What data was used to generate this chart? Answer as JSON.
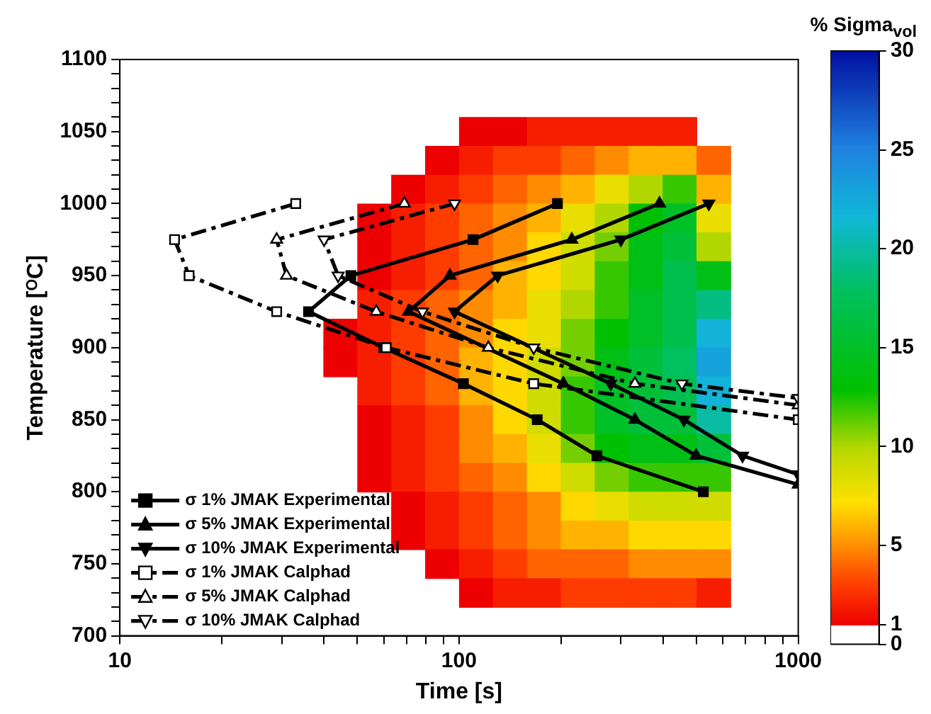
{
  "chart_data": [
    {
      "type": "heatmap",
      "categories": [
        null,
        null,
        null,
        null,
        null,
        null,
        null,
        null,
        null,
        null,
        null,
        null
      ],
      "y_categories": [
        null,
        null,
        null,
        null,
        null,
        null,
        null,
        null,
        null,
        null,
        null,
        null,
        null,
        null,
        null,
        null,
        null
      ],
      "cells": [
        [
          null,
          null,
          null,
          null,
          1,
          1,
          2,
          2,
          2,
          2,
          2,
          null
        ],
        [
          null,
          null,
          null,
          1,
          2,
          3,
          3,
          4,
          5,
          6,
          6,
          4
        ],
        [
          null,
          null,
          1,
          2,
          3,
          4,
          5,
          6,
          8,
          10,
          12,
          6
        ],
        [
          null,
          1,
          2,
          3,
          4,
          5,
          6,
          8,
          10,
          13,
          15,
          8
        ],
        [
          null,
          1,
          2,
          3,
          4,
          5,
          7,
          9,
          11,
          14,
          16,
          10
        ],
        [
          null,
          1,
          2,
          3,
          4,
          6,
          7,
          9,
          12,
          14,
          17,
          14
        ],
        [
          null,
          2,
          3,
          4,
          5,
          6,
          8,
          10,
          12,
          15,
          17,
          19
        ],
        [
          1,
          2,
          3,
          4,
          5,
          7,
          8,
          11,
          13,
          15,
          17,
          22
        ],
        [
          1,
          2,
          3,
          4,
          6,
          7,
          9,
          11,
          14,
          16,
          18,
          23
        ],
        [
          null,
          2,
          3,
          4,
          6,
          7,
          9,
          12,
          15,
          16,
          17,
          22
        ],
        [
          null,
          1,
          2,
          3,
          5,
          7,
          9,
          12,
          15,
          16,
          16,
          20
        ],
        [
          null,
          1,
          2,
          3,
          5,
          6,
          8,
          11,
          13,
          14,
          14,
          16
        ],
        [
          null,
          1,
          2,
          3,
          4,
          5,
          7,
          9,
          11,
          12,
          12,
          12
        ],
        [
          null,
          null,
          1,
          2,
          3,
          4,
          5,
          7,
          8,
          9,
          9,
          9
        ],
        [
          null,
          null,
          1,
          2,
          3,
          4,
          5,
          6,
          6,
          7,
          7,
          7
        ],
        [
          null,
          null,
          null,
          1,
          2,
          3,
          4,
          4,
          4,
          5,
          5,
          5
        ],
        [
          null,
          null,
          null,
          null,
          1,
          2,
          2,
          3,
          3,
          3,
          3,
          2
        ]
      ],
      "clim": [
        0,
        30
      ],
      "cticks": [
        0,
        1,
        5,
        10,
        15,
        20,
        25,
        30
      ],
      "clabel": "% Sigma$_{vol}$"
    },
    {
      "type": "line",
      "xlabel": "Time [s]",
      "ylabel": "Temperature [ᴼC]",
      "log": "x",
      "xlim": [
        10,
        1000
      ],
      "xticks": [
        10,
        {
          "value": 20,
          "label": null
        },
        {
          "value": 30,
          "label": null
        },
        {
          "value": 40,
          "label": null
        },
        {
          "value": 50,
          "label": null
        },
        {
          "value": 60,
          "label": null
        },
        {
          "value": 70,
          "label": null
        },
        {
          "value": 80,
          "label": null
        },
        {
          "value": 90,
          "label": null
        },
        100,
        {
          "value": 200,
          "label": null
        },
        {
          "value": 300,
          "label": null
        },
        {
          "value": 400,
          "label": null
        },
        {
          "value": 500,
          "label": null
        },
        {
          "value": 600,
          "label": null
        },
        {
          "value": 700,
          "label": null
        },
        {
          "value": 800,
          "label": null
        },
        {
          "value": 900,
          "label": null
        },
        1000
      ],
      "ylim": [
        700,
        1100
      ],
      "yticks": [
        700,
        {
          "value": 710,
          "label": null
        },
        {
          "value": 720,
          "label": null
        },
        {
          "value": 730,
          "label": null
        },
        {
          "value": 740,
          "label": null
        },
        750,
        {
          "value": 760,
          "label": null
        },
        {
          "value": 770,
          "label": null
        },
        {
          "value": 780,
          "label": null
        },
        {
          "value": 790,
          "label": null
        },
        800,
        {
          "value": 810,
          "label": null
        },
        {
          "value": 820,
          "label": null
        },
        {
          "value": 830,
          "label": null
        },
        {
          "value": 840,
          "label": null
        },
        850,
        {
          "value": 860,
          "label": null
        },
        {
          "value": 870,
          "label": null
        },
        {
          "value": 880,
          "label": null
        },
        {
          "value": 890,
          "label": null
        },
        900,
        {
          "value": 910,
          "label": null
        },
        {
          "value": 920,
          "label": null
        },
        {
          "value": 930,
          "label": null
        },
        {
          "value": 940,
          "label": null
        },
        950,
        {
          "value": 960,
          "label": null
        },
        {
          "value": 970,
          "label": null
        },
        {
          "value": 980,
          "label": null
        },
        {
          "value": 990,
          "label": null
        },
        1000,
        {
          "value": 1010,
          "label": null
        },
        {
          "value": 1020,
          "label": null
        },
        {
          "value": 1030,
          "label": null
        },
        {
          "value": 1040,
          "label": null
        },
        1050,
        {
          "value": 1060,
          "label": null
        },
        {
          "value": 1070,
          "label": null
        },
        {
          "value": 1080,
          "label": null
        },
        {
          "value": 1090,
          "label": null
        },
        1100
      ],
      "legend": "bottom left",
      "series": [
        {
          "name": "σ 1% JMAK Experimental",
          "color": "#000000",
          "marker": "square",
          "line_style": "solid",
          "x": [
            195,
            110,
            48,
            36,
            60,
            103,
            170,
            255,
            525
          ],
          "values": [
            1000,
            975,
            950,
            925,
            900,
            875,
            850,
            825,
            800
          ]
        },
        {
          "name": "σ 5% JMAK Experimental",
          "color": "#000000",
          "marker": "triangle",
          "line_style": "solid",
          "x": [
            390,
            215,
            94,
            71,
            203,
            330,
            500,
            1000
          ],
          "values": [
            1000,
            975,
            950,
            925,
            875,
            850,
            825,
            805
          ]
        },
        {
          "name": "σ 10% JMAK Experimental",
          "color": "#000000",
          "marker": "triangle-down",
          "line_style": "solid",
          "x": [
            545,
            300,
            130,
            97,
            280,
            460,
            685,
            1000
          ],
          "values": [
            1000,
            975,
            950,
            925,
            875,
            850,
            825,
            812
          ]
        },
        {
          "name": "σ 1% JMAK Calphad",
          "color": "#000000",
          "marker": "square",
          "line_style": "dashed",
          "x": [
            33,
            14.5,
            16,
            29,
            61,
            166,
            1000
          ],
          "values": [
            1000,
            975,
            950,
            925,
            900,
            875,
            850
          ]
        },
        {
          "name": "σ 5% JMAK Calphad",
          "color": "#000000",
          "marker": "triangle",
          "line_style": "dashed",
          "x": [
            69,
            29,
            31,
            57,
            122,
            330,
            1000
          ],
          "values": [
            1000,
            975,
            950,
            925,
            900,
            875,
            860
          ]
        },
        {
          "name": "σ 10% JMAK Calphad",
          "color": "#000000",
          "marker": "triangle-down",
          "line_style": "dashed",
          "x": [
            97,
            40,
            44,
            78,
            166,
            454,
            1000
          ],
          "values": [
            1000,
            975,
            950,
            925,
            900,
            875,
            865
          ]
        }
      ]
    }
  ]
}
